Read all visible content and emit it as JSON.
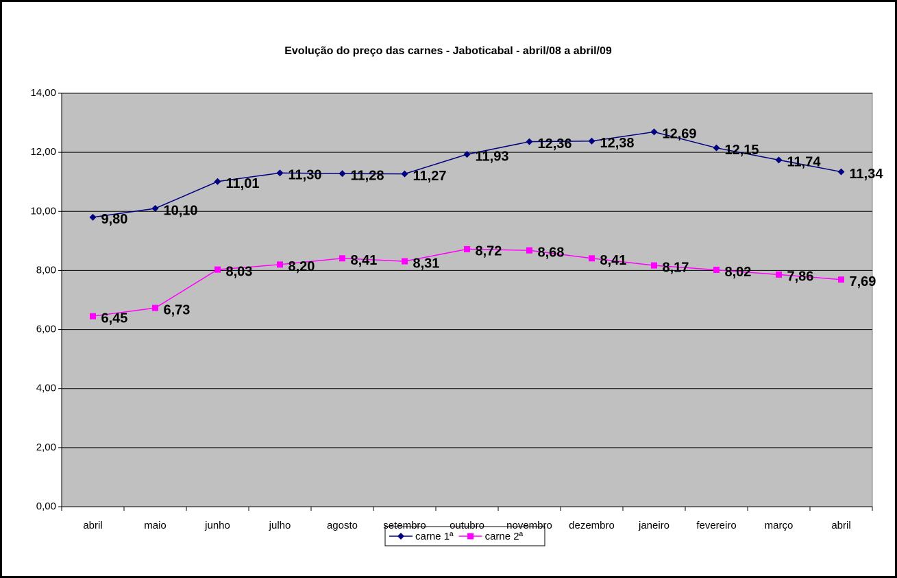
{
  "chart_data": {
    "type": "line",
    "title": "Evolução do preço das carnes - Jaboticabal - abril/08 a abril/09",
    "categories": [
      "abril",
      "maio",
      "junho",
      "julho",
      "agosto",
      "setembro",
      "outubro",
      "novembro",
      "dezembro",
      "janeiro",
      "fevereiro",
      "março",
      "abril"
    ],
    "series": [
      {
        "name": "carne 1ª",
        "color": "#000080",
        "marker": "diamond",
        "values": [
          9.8,
          10.1,
          11.01,
          11.3,
          11.28,
          11.27,
          11.93,
          12.36,
          12.38,
          12.69,
          12.15,
          11.74,
          11.34
        ],
        "value_labels": [
          "9,80",
          "10,10",
          "11,01",
          "11,30",
          "11,28",
          "11,27",
          "11,93",
          "12,36",
          "12,38",
          "12,69",
          "12,15",
          "11,74",
          "11,34"
        ]
      },
      {
        "name": "carne 2ª",
        "color": "#ff00ff",
        "marker": "square",
        "values": [
          6.45,
          6.73,
          8.03,
          8.2,
          8.41,
          8.31,
          8.72,
          8.68,
          8.41,
          8.17,
          8.02,
          7.86,
          7.69
        ],
        "value_labels": [
          "6,45",
          "6,73",
          "8,03",
          "8,20",
          "8,41",
          "8,31",
          "8,72",
          "8,68",
          "8,41",
          "8,17",
          "8,02",
          "7,86",
          "7,69"
        ]
      }
    ],
    "ylim": [
      0,
      14
    ],
    "yticks": [
      {
        "value": 0,
        "label": "0,00"
      },
      {
        "value": 2,
        "label": "2,00"
      },
      {
        "value": 4,
        "label": "4,00"
      },
      {
        "value": 6,
        "label": "6,00"
      },
      {
        "value": 8,
        "label": "8,00"
      },
      {
        "value": 10,
        "label": "10,00"
      },
      {
        "value": 12,
        "label": "12,00"
      },
      {
        "value": 14,
        "label": "14,00"
      }
    ],
    "grid": true,
    "legend": "bottom",
    "plot_background": "#c0c0c0"
  }
}
